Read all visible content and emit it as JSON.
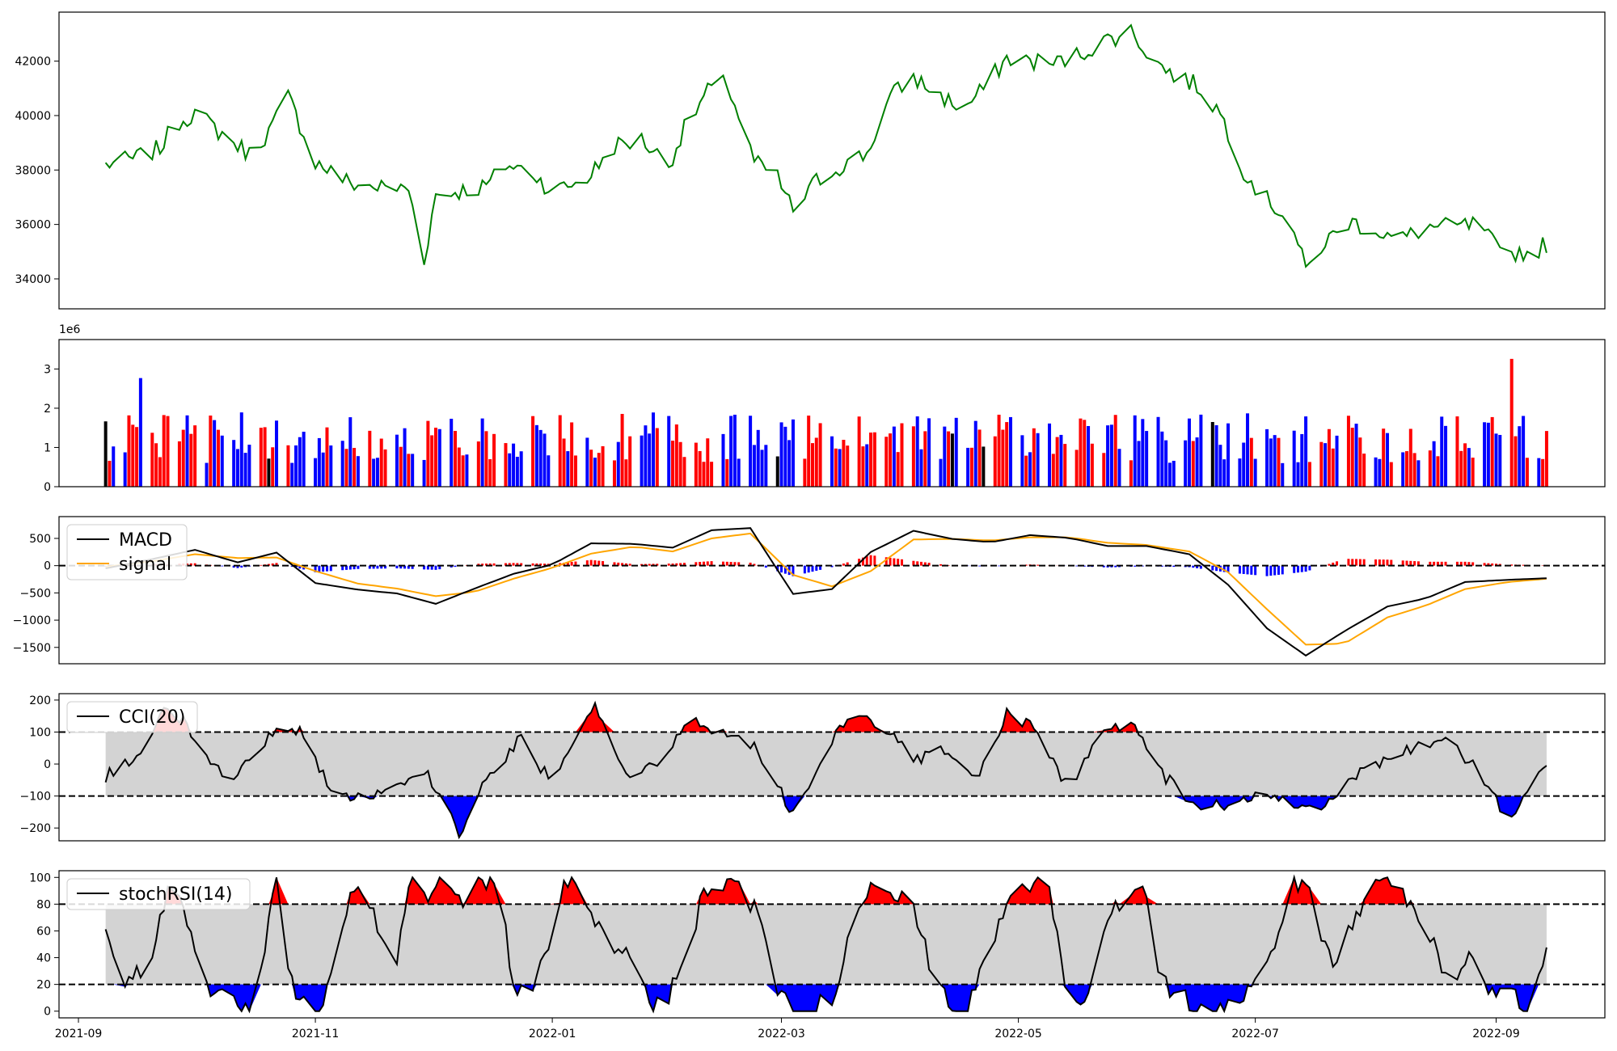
{
  "chart_data": {
    "type": "line",
    "x_ticks": [
      "2021-09",
      "2021-11",
      "2022-01",
      "2022-03",
      "2022-05",
      "2022-07",
      "2022-09"
    ],
    "colors": {
      "price": "#008000",
      "volume_up": "#ff0000",
      "volume_down": "#0000ff",
      "volume_flat": "#000000",
      "macd": "#000000",
      "signal": "#ffa500",
      "band": "#d3d3d3",
      "overbought": "#ff0000",
      "oversold": "#0000ff"
    },
    "panels": [
      {
        "id": "price",
        "type": "line",
        "ylim": [
          32900,
          43800
        ],
        "yticks": [
          "34000",
          "36000",
          "38000",
          "40000",
          "42000"
        ],
        "ytick_values": [
          34000,
          36000,
          38000,
          40000,
          42000
        ],
        "series": [
          {
            "x": [
              "2021-09-08",
              "2021-09-15",
              "2021-09-22",
              "2021-09-26",
              "2021-10-01",
              "2021-10-10",
              "2021-10-15",
              "2021-10-20",
              "2021-10-25",
              "2021-11-01",
              "2021-11-10",
              "2021-11-15",
              "2021-11-25",
              "2021-11-29",
              "2021-12-02",
              "2021-12-07",
              "2021-12-15",
              "2021-12-20",
              "2021-12-27",
              "2022-01-01",
              "2022-01-10",
              "2022-01-17",
              "2022-01-24",
              "2022-01-31",
              "2022-02-04",
              "2022-02-10",
              "2022-02-15",
              "2022-02-22",
              "2022-02-28",
              "2022-03-04",
              "2022-03-10",
              "2022-03-17",
              "2022-03-23",
              "2022-03-29",
              "2022-04-04",
              "2022-04-10",
              "2022-04-17",
              "2022-04-22",
              "2022-04-28",
              "2022-05-05",
              "2022-05-10",
              "2022-05-16",
              "2022-05-24",
              "2022-05-30",
              "2022-06-05",
              "2022-06-10",
              "2022-06-16",
              "2022-06-22",
              "2022-06-28",
              "2022-07-03",
              "2022-07-10",
              "2022-07-14",
              "2022-07-18",
              "2022-07-25",
              "2022-08-01",
              "2022-08-07",
              "2022-08-14",
              "2022-08-21",
              "2022-08-28",
              "2022-09-02",
              "2022-09-07",
              "2022-09-10",
              "2022-09-14"
            ],
            "y": [
              38200,
              38400,
              38800,
              39700,
              40100,
              39100,
              38600,
              39400,
              40700,
              38300,
              37500,
              37400,
              37300,
              34700,
              37100,
              37200,
              37400,
              38200,
              37900,
              37200,
              37700,
              38900,
              39100,
              38200,
              39500,
              40900,
              41200,
              38300,
              37700,
              36500,
              37600,
              38200,
              38600,
              40700,
              41400,
              40800,
              40200,
              41000,
              42100,
              42000,
              41900,
              42200,
              42800,
              43100,
              42000,
              41500,
              41100,
              40100,
              38000,
              37000,
              36200,
              34300,
              35200,
              36100,
              35800,
              35400,
              35900,
              35900,
              36000,
              34900,
              35000,
              34900,
              35300
            ]
          }
        ]
      },
      {
        "id": "volume",
        "type": "bar",
        "ylim": [
          0,
          3750000
        ],
        "yticks": [
          "0",
          "1",
          "2",
          "3"
        ],
        "ytick_values": [
          0,
          1000000,
          2000000,
          3000000
        ],
        "offset_label": "1e6"
      },
      {
        "id": "macd",
        "type": "line",
        "ylim": [
          -1800,
          900
        ],
        "yticks": [
          "−1500",
          "−1000",
          "−500",
          "0",
          "500"
        ],
        "ytick_values": [
          -1500,
          -1000,
          -500,
          0,
          500
        ],
        "reference_lines": [
          0
        ],
        "series": [
          {
            "name": "MACD",
            "x": [
              "2021-09-08",
              "2021-09-20",
              "2021-10-01",
              "2021-10-12",
              "2021-10-22",
              "2021-11-01",
              "2021-11-12",
              "2021-11-22",
              "2021-12-02",
              "2021-12-12",
              "2021-12-22",
              "2022-01-01",
              "2022-01-11",
              "2022-01-22",
              "2022-02-01",
              "2022-02-11",
              "2022-02-21",
              "2022-03-04",
              "2022-03-14",
              "2022-03-24",
              "2022-04-04",
              "2022-04-14",
              "2022-04-24",
              "2022-05-04",
              "2022-05-14",
              "2022-05-24",
              "2022-06-03",
              "2022-06-14",
              "2022-06-24",
              "2022-07-04",
              "2022-07-14",
              "2022-07-24",
              "2022-08-04",
              "2022-08-14",
              "2022-08-24",
              "2022-09-04",
              "2022-09-14"
            ],
            "y": [
              -50,
              120,
              290,
              60,
              240,
              -320,
              -440,
              -510,
              -700,
              -420,
              -150,
              20,
              410,
              400,
              330,
              650,
              690,
              -520,
              -430,
              250,
              640,
              490,
              430,
              560,
              510,
              360,
              360,
              210,
              -350,
              -1150,
              -1650,
              -1200,
              -750,
              -600,
              -300,
              -260,
              -230
            ]
          },
          {
            "name": "signal",
            "x": [
              "2021-09-08",
              "2021-09-20",
              "2021-10-01",
              "2021-10-12",
              "2021-10-22",
              "2021-11-01",
              "2021-11-12",
              "2021-11-22",
              "2021-12-02",
              "2021-12-12",
              "2021-12-22",
              "2022-01-01",
              "2022-01-11",
              "2022-01-22",
              "2022-02-01",
              "2022-02-11",
              "2022-02-21",
              "2022-03-04",
              "2022-03-14",
              "2022-03-24",
              "2022-04-04",
              "2022-04-14",
              "2022-04-24",
              "2022-05-04",
              "2022-05-14",
              "2022-05-24",
              "2022-06-03",
              "2022-06-14",
              "2022-06-24",
              "2022-07-04",
              "2022-07-14",
              "2022-07-24",
              "2022-08-04",
              "2022-08-14",
              "2022-08-24",
              "2022-09-04",
              "2022-09-14"
            ],
            "y": [
              -20,
              80,
              210,
              140,
              150,
              -100,
              -330,
              -420,
              -560,
              -480,
              -240,
              -40,
              220,
              350,
              260,
              500,
              590,
              -170,
              -380,
              -100,
              480,
              490,
              460,
              520,
              520,
              420,
              380,
              260,
              -120,
              -800,
              -1450,
              -1430,
              -950,
              -730,
              -430,
              -300,
              -240
            ]
          }
        ]
      },
      {
        "id": "cci",
        "type": "line",
        "ylim": [
          -240,
          220
        ],
        "yticks": [
          "−200",
          "−100",
          "0",
          "100",
          "200"
        ],
        "ytick_values": [
          -200,
          -100,
          0,
          100,
          200
        ],
        "reference_lines": [
          100,
          -100
        ],
        "band": [
          -100,
          100
        ],
        "series": [
          {
            "name": "CCI(20)",
            "x": [
              "2021-09-08",
              "2021-09-16",
              "2021-09-24",
              "2021-10-01",
              "2021-10-10",
              "2021-10-20",
              "2021-10-28",
              "2021-11-06",
              "2021-11-14",
              "2021-11-22",
              "2021-11-30",
              "2021-12-08",
              "2021-12-16",
              "2021-12-24",
              "2022-01-01",
              "2022-01-12",
              "2022-01-20",
              "2022-01-28",
              "2022-02-05",
              "2022-02-14",
              "2022-02-22",
              "2022-03-04",
              "2022-03-13",
              "2022-03-20",
              "2022-03-28",
              "2022-04-05",
              "2022-04-13",
              "2022-04-21",
              "2022-04-28",
              "2022-05-06",
              "2022-05-14",
              "2022-05-22",
              "2022-05-30",
              "2022-06-07",
              "2022-06-15",
              "2022-06-23",
              "2022-07-01",
              "2022-07-09",
              "2022-07-18",
              "2022-07-26",
              "2022-08-03",
              "2022-08-11",
              "2022-08-19",
              "2022-08-27",
              "2022-09-04",
              "2022-09-14"
            ],
            "y": [
              -40,
              20,
              180,
              90,
              -70,
              90,
              110,
              -100,
              -110,
              -60,
              -30,
              -220,
              -30,
              80,
              -60,
              180,
              -30,
              -10,
              140,
              100,
              60,
              -160,
              60,
              160,
              100,
              10,
              50,
              -40,
              160,
              100,
              -80,
              90,
              130,
              -30,
              -130,
              -130,
              -100,
              -120,
              -130,
              -40,
              10,
              50,
              80,
              -20,
              -170,
              -10
            ]
          }
        ]
      },
      {
        "id": "stochrsi",
        "type": "line",
        "ylim": [
          -5,
          105
        ],
        "yticks": [
          "0",
          "20",
          "40",
          "60",
          "80",
          "100"
        ],
        "ytick_values": [
          0,
          20,
          40,
          60,
          80,
          100
        ],
        "reference_lines": [
          80,
          20
        ],
        "band": [
          20,
          80
        ],
        "series": [
          {
            "name": "stochRSI(14)",
            "x": [
              "2021-09-08",
              "2021-09-12",
              "2021-09-16",
              "2021-09-20",
              "2021-09-25",
              "2021-09-30",
              "2021-10-05",
              "2021-10-10",
              "2021-10-14",
              "2021-10-18",
              "2021-10-22",
              "2021-10-26",
              "2021-10-30",
              "2021-11-03",
              "2021-11-08",
              "2021-11-13",
              "2021-11-18",
              "2021-11-22",
              "2021-11-26",
              "2021-11-30",
              "2021-12-04",
              "2021-12-08",
              "2021-12-13",
              "2021-12-18",
              "2021-12-22",
              "2021-12-27",
              "2022-01-01",
              "2022-01-05",
              "2022-01-10",
              "2022-01-15",
              "2022-01-20",
              "2022-01-25",
              "2022-01-30",
              "2022-02-04",
              "2022-02-08",
              "2022-02-13",
              "2022-02-18",
              "2022-02-23",
              "2022-02-28",
              "2022-03-04",
              "2022-03-09",
              "2022-03-14",
              "2022-03-19",
              "2022-03-24",
              "2022-03-29",
              "2022-04-03",
              "2022-04-08",
              "2022-04-13",
              "2022-04-18",
              "2022-04-23",
              "2022-04-28",
              "2022-05-03",
              "2022-05-08",
              "2022-05-13",
              "2022-05-18",
              "2022-05-23",
              "2022-05-28",
              "2022-06-02",
              "2022-06-07",
              "2022-06-12",
              "2022-06-17",
              "2022-06-22",
              "2022-06-27",
              "2022-07-01",
              "2022-07-06",
              "2022-07-11",
              "2022-07-16",
              "2022-07-21",
              "2022-07-26",
              "2022-07-31",
              "2022-08-05",
              "2022-08-10",
              "2022-08-15",
              "2022-08-20",
              "2022-08-25",
              "2022-08-30",
              "2022-09-04",
              "2022-09-09",
              "2022-09-14"
            ],
            "y": [
              60,
              10,
              30,
              40,
              100,
              60,
              15,
              10,
              0,
              30,
              100,
              20,
              10,
              0,
              70,
              100,
              60,
              40,
              100,
              80,
              100,
              80,
              100,
              95,
              20,
              10,
              60,
              100,
              80,
              60,
              40,
              10,
              0,
              40,
              80,
              100,
              90,
              70,
              20,
              0,
              0,
              10,
              60,
              100,
              95,
              80,
              40,
              10,
              0,
              40,
              80,
              95,
              100,
              20,
              10,
              60,
              90,
              100,
              20,
              10,
              0,
              0,
              0,
              20,
              50,
              100,
              80,
              30,
              70,
              90,
              100,
              80,
              60,
              20,
              40,
              10,
              20,
              0,
              50
            ]
          }
        ]
      }
    ]
  }
}
